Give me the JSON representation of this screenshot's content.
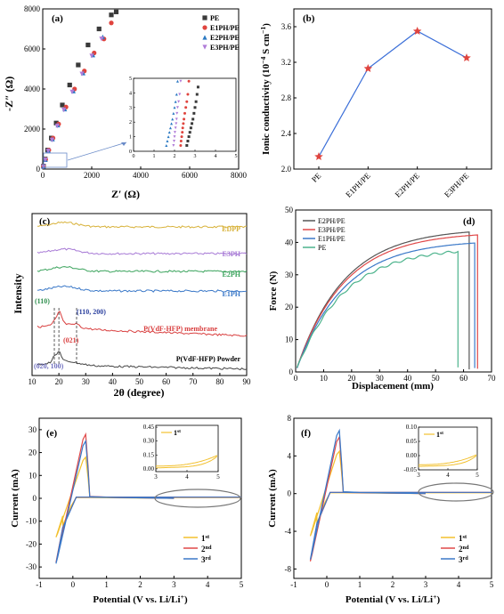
{
  "chart_data": [
    {
      "panel": "(a)",
      "type": "scatter",
      "xlabel": "Z′ (Ω)",
      "ylabel": "-Z″ (Ω)",
      "xlim": [
        0,
        8000
      ],
      "ylim": [
        0,
        8000
      ],
      "xticks": [
        0,
        2000,
        4000,
        6000,
        8000
      ],
      "yticks": [
        0,
        2000,
        4000,
        6000,
        8000
      ],
      "legend_position": "top-right",
      "series": [
        {
          "name": "PE",
          "marker": "square",
          "color": "#3a3a3a",
          "x": [
            30,
            100,
            200,
            350,
            550,
            800,
            1100,
            1450,
            1850,
            2300,
            2800,
            3000
          ],
          "y": [
            150,
            500,
            950,
            1550,
            2300,
            3200,
            4200,
            5200,
            6200,
            7000,
            7700,
            7850
          ]
        },
        {
          "name": "E1PH/PE",
          "marker": "circle",
          "color": "#e0443e",
          "x": [
            30,
            120,
            250,
            420,
            650,
            950,
            1300,
            1700,
            2100,
            2500,
            2800
          ],
          "y": [
            120,
            480,
            950,
            1550,
            2250,
            3100,
            4000,
            4900,
            5800,
            6500,
            7300
          ]
        },
        {
          "name": "E2PH/PE",
          "marker": "triangle",
          "color": "#2b79c2",
          "x": [
            30,
            110,
            230,
            400,
            620,
            900,
            1250,
            1650,
            2050,
            2450
          ],
          "y": [
            130,
            470,
            930,
            1500,
            2200,
            3000,
            3900,
            4800,
            5700,
            6600
          ]
        },
        {
          "name": "E3PH/PE",
          "marker": "triangle-down",
          "color": "#b07cd8",
          "x": [
            30,
            105,
            220,
            380,
            590,
            860,
            1200,
            1600,
            2000,
            2400
          ],
          "y": [
            125,
            460,
            900,
            1450,
            2150,
            2950,
            3850,
            4750,
            5650,
            6500
          ]
        }
      ],
      "inset": {
        "xlim": [
          0,
          5
        ],
        "ylim": [
          0,
          5
        ],
        "xticks": [
          0,
          1,
          2,
          3,
          4,
          5
        ],
        "yticks": [
          0,
          1,
          2,
          3,
          4,
          5
        ],
        "series": [
          {
            "name": "PE",
            "x": [
              2.6,
              2.65,
              2.7,
              2.75,
              2.8,
              2.85,
              2.9,
              2.95,
              3.0,
              3.05,
              3.1,
              3.15
            ],
            "y": [
              0.4,
              0.7,
              1.0,
              1.3,
              1.6,
              1.9,
              2.2,
              2.6,
              3.0,
              3.4,
              3.9,
              4.4
            ]
          },
          {
            "name": "E1PH/PE",
            "x": [
              2.3,
              2.32,
              2.35,
              2.38,
              2.4,
              2.43,
              2.46,
              2.5,
              2.55,
              2.6,
              2.65,
              2.7
            ],
            "y": [
              0.4,
              0.7,
              1.0,
              1.3,
              1.6,
              1.9,
              2.2,
              2.6,
              3.0,
              3.4,
              3.9,
              4.8
            ]
          },
          {
            "name": "E2PH/PE",
            "x": [
              1.6,
              1.65,
              1.7,
              1.75,
              1.8,
              1.85,
              1.9,
              1.95,
              2.0,
              2.05,
              2.1,
              2.15
            ],
            "y": [
              0.4,
              0.7,
              1.0,
              1.3,
              1.6,
              1.9,
              2.2,
              2.6,
              3.0,
              3.4,
              3.9,
              4.8
            ]
          },
          {
            "name": "E3PH/PE",
            "x": [
              1.95,
              1.98,
              2.0,
              2.02,
              2.05,
              2.08,
              2.1,
              2.12,
              2.15,
              2.2,
              2.25,
              2.3
            ],
            "y": [
              0.4,
              0.7,
              1.0,
              1.3,
              1.6,
              1.9,
              2.2,
              2.6,
              3.0,
              3.4,
              3.9,
              4.8
            ]
          }
        ]
      }
    },
    {
      "panel": "(b)",
      "type": "line",
      "ylabel": "Ionic conductivity (10⁻⁴ S cm⁻¹)",
      "categories": [
        "PE",
        "E1PH/PE",
        "E2PH/PE",
        "E3PH/PE"
      ],
      "values": [
        2.14,
        3.13,
        3.55,
        3.25
      ],
      "ylim": [
        2.0,
        3.8
      ],
      "yticks": [
        "2.0",
        "2.4",
        "2.8",
        "3.2",
        "3.6"
      ],
      "line_color": "#3a6ed8",
      "marker_color": "#e0443e"
    },
    {
      "panel": "(c)",
      "type": "line",
      "xlabel": "2θ (degree)",
      "ylabel": "Intensity",
      "xlim": [
        10,
        90
      ],
      "xticks": [
        10,
        20,
        30,
        40,
        50,
        60,
        70,
        80,
        90
      ],
      "series": [
        {
          "name": "EDPP",
          "color": "#d8b23a"
        },
        {
          "name": "E3PH",
          "color": "#a87bd6"
        },
        {
          "name": "E2PH",
          "color": "#3aa35c"
        },
        {
          "name": "E1PH",
          "color": "#3a78c8"
        },
        {
          "name": "P(VdF-HFP) membrane",
          "color": "#d94040"
        },
        {
          "name": "P(VdF-HFP) Powder",
          "color": "#444444"
        }
      ],
      "annotations": [
        "(110)",
        "(110, 200)",
        "(021)",
        "(020, 100)"
      ]
    },
    {
      "panel": "(d)",
      "type": "line",
      "xlabel": "Displacement (mm)",
      "ylabel": "Force (N)",
      "xlim": [
        0,
        70
      ],
      "ylim": [
        0,
        50
      ],
      "xticks": [
        0,
        10,
        20,
        30,
        40,
        50,
        60,
        70
      ],
      "yticks": [
        0,
        10,
        20,
        30,
        40,
        50
      ],
      "legend_position": "top-left",
      "series": [
        {
          "name": "E2PH/PE",
          "color": "#555555",
          "break_x": 62,
          "peak": 43.2
        },
        {
          "name": "E3PH/PE",
          "color": "#e04848",
          "break_x": 65,
          "peak": 42.3
        },
        {
          "name": "E1PH/PE",
          "color": "#3a78c8",
          "break_x": 64,
          "peak": 39.8
        },
        {
          "name": "PE",
          "color": "#4cb38c",
          "break_x": 58,
          "peak": 37.2
        }
      ]
    },
    {
      "panel": "(e)",
      "type": "line",
      "xlabel": "Potential (V vs. Li/Li⁺)",
      "ylabel": "Current (mA)",
      "xlim": [
        -1,
        5
      ],
      "ylim": [
        -35,
        35
      ],
      "xticks": [
        -1,
        0,
        1,
        2,
        3,
        4,
        5
      ],
      "yticks": [
        -30,
        -20,
        -10,
        0,
        10,
        20,
        30
      ],
      "legend_position": "bottom-right",
      "series": [
        {
          "name": "1st",
          "color": "#f2c02e",
          "cathodic_peak": -17,
          "anodic_peak": 18
        },
        {
          "name": "2nd",
          "color": "#e04848",
          "cathodic_peak": -28,
          "anodic_peak": 28
        },
        {
          "name": "3rd",
          "color": "#3a78c8",
          "cathodic_peak": -28.5,
          "anodic_peak": 25
        }
      ],
      "inset": {
        "xlim": [
          3,
          5
        ],
        "ylim": [
          -0.03,
          0.47
        ],
        "xticks": [
          3,
          4,
          5
        ],
        "yticks": [
          "0.00",
          "0.15",
          "0.30",
          "0.45"
        ],
        "legend": "1st"
      }
    },
    {
      "panel": "(f)",
      "type": "line",
      "xlabel": "Potential (V vs. Li/Li⁺)",
      "ylabel": "Current (mA)",
      "xlim": [
        -1,
        5
      ],
      "ylim": [
        -9,
        8
      ],
      "xticks": [
        -1,
        0,
        1,
        2,
        3,
        4,
        5
      ],
      "yticks": [
        -8,
        -4,
        0,
        4,
        8
      ],
      "legend_position": "bottom-right",
      "series": [
        {
          "name": "1st",
          "color": "#f2c02e",
          "cathodic_peak": -4.5,
          "anodic_peak": 4.5
        },
        {
          "name": "2nd",
          "color": "#e04848",
          "cathodic_peak": -7.2,
          "anodic_peak": 6.0
        },
        {
          "name": "3rd",
          "color": "#3a78c8",
          "cathodic_peak": -7.0,
          "anodic_peak": 6.7
        }
      ],
      "inset": {
        "xlim": [
          3,
          5
        ],
        "ylim": [
          -0.05,
          0.1
        ],
        "xticks": [
          3,
          4,
          5
        ],
        "yticks": [
          "0.10",
          "0.05",
          "0.00",
          "-0.05"
        ],
        "legend": "1st"
      }
    }
  ]
}
